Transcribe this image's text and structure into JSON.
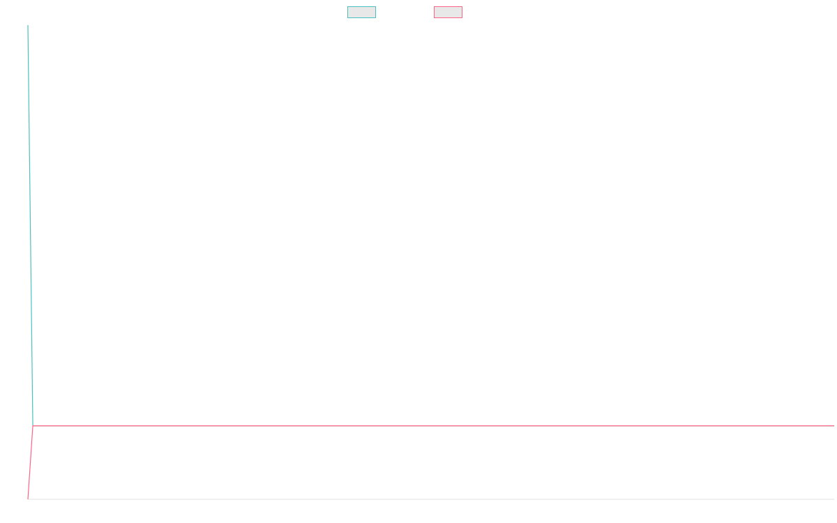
{
  "chart_data": {
    "type": "line",
    "title": "",
    "xlabel": "",
    "ylabel": "",
    "x": [
      0,
      1,
      2,
      3,
      4,
      5,
      6,
      7,
      8,
      9,
      10,
      11,
      12,
      13,
      14,
      15,
      16,
      17,
      18,
      19,
      20,
      21,
      22,
      23,
      24,
      25,
      26,
      27,
      28,
      29,
      30,
      31,
      32,
      33,
      34,
      35,
      36,
      37,
      38,
      39,
      40,
      41,
      42,
      43,
      44,
      45,
      46,
      47,
      48,
      49,
      50,
      51,
      52,
      53,
      54,
      55,
      56,
      57,
      58,
      59,
      60,
      61,
      62,
      63,
      64,
      65,
      66,
      67,
      68,
      69,
      70,
      71,
      72,
      73,
      74,
      75,
      76,
      77,
      78,
      79,
      80,
      81,
      82,
      83,
      84,
      85,
      86,
      87,
      88,
      89,
      90,
      91,
      92,
      93,
      94,
      95,
      96,
      97,
      98,
      99,
      100,
      101,
      102,
      103,
      104,
      105,
      106,
      107,
      108,
      109,
      110,
      111,
      112,
      113,
      114,
      115,
      116,
      117,
      118,
      119,
      120,
      121,
      122,
      123,
      124,
      125,
      126,
      127,
      128,
      129,
      130,
      131,
      132,
      133,
      134,
      135,
      136,
      137,
      138,
      139,
      140,
      141,
      142,
      143,
      144,
      145,
      146,
      147,
      148,
      149,
      150,
      151,
      152,
      153,
      154,
      155,
      156,
      157,
      158,
      159,
      160,
      161,
      162,
      163,
      164
    ],
    "xlim": [
      0,
      164
    ],
    "ylim": [
      0,
      100
    ],
    "legend_position": "top-center",
    "grid": false,
    "series": [
      {
        "name": "",
        "color": "#4bc0c0",
        "fill": "#e8e8e8",
        "values": [
          100,
          15.5,
          15.5,
          15.5,
          15.5,
          15.5,
          15.5,
          15.5,
          15.5,
          15.5,
          15.5,
          15.5,
          15.5,
          15.5,
          15.5,
          15.5,
          15.5,
          15.5,
          15.5,
          15.5,
          15.5,
          15.5,
          15.5,
          15.5,
          15.5,
          15.5,
          15.5,
          15.5,
          15.5,
          15.5,
          15.5,
          15.5,
          15.5,
          15.5,
          15.5,
          15.5,
          15.5,
          15.5,
          15.5,
          15.5,
          15.5,
          15.5,
          15.5,
          15.5,
          15.5,
          15.5,
          15.5,
          15.5,
          15.5,
          15.5,
          15.5,
          15.5,
          15.5,
          15.5,
          15.5,
          15.5,
          15.5,
          15.5,
          15.5,
          15.5,
          15.5,
          15.5,
          15.5,
          15.5,
          15.5,
          15.5,
          15.5,
          15.5,
          15.5,
          15.5,
          15.5,
          15.5,
          15.5,
          15.5,
          15.5,
          15.5,
          15.5,
          15.5,
          15.5,
          15.5,
          15.5,
          15.5,
          15.5,
          15.5,
          15.5,
          15.5,
          15.5,
          15.5,
          15.5,
          15.5,
          15.5,
          15.5,
          15.5,
          15.5,
          15.5,
          15.5,
          15.5,
          15.5,
          15.5,
          15.5,
          15.5,
          15.5,
          15.5,
          15.5,
          15.5,
          15.5,
          15.5,
          15.5,
          15.5,
          15.5,
          15.5,
          15.5,
          15.5,
          15.5,
          15.5,
          15.5,
          15.5,
          15.5,
          15.5,
          15.5,
          15.5,
          15.5,
          15.5,
          15.5,
          15.5,
          15.5,
          15.5,
          15.5,
          15.5,
          15.5,
          15.5,
          15.5,
          15.5,
          15.5,
          15.5,
          15.5,
          15.5,
          15.5,
          15.5,
          15.5,
          15.5,
          15.5,
          15.5,
          15.5,
          15.5,
          15.5,
          15.5,
          15.5,
          15.5,
          15.5,
          15.5,
          15.5,
          15.5,
          15.5,
          15.5,
          15.5,
          15.5,
          15.5,
          15.5,
          15.5,
          15.5,
          15.5,
          15.5,
          15.5,
          15.5
        ]
      },
      {
        "name": "",
        "color": "#ff6384",
        "fill": "#e8e8e8",
        "values": [
          0,
          15.5,
          15.5,
          15.5,
          15.5,
          15.5,
          15.5,
          15.5,
          15.5,
          15.5,
          15.5,
          15.5,
          15.5,
          15.5,
          15.5,
          15.5,
          15.5,
          15.5,
          15.5,
          15.5,
          15.5,
          15.5,
          15.5,
          15.5,
          15.5,
          15.5,
          15.5,
          15.5,
          15.5,
          15.5,
          15.5,
          15.5,
          15.5,
          15.5,
          15.5,
          15.5,
          15.5,
          15.5,
          15.5,
          15.5,
          15.5,
          15.5,
          15.5,
          15.5,
          15.5,
          15.5,
          15.5,
          15.5,
          15.5,
          15.5,
          15.5,
          15.5,
          15.5,
          15.5,
          15.5,
          15.5,
          15.5,
          15.5,
          15.5,
          15.5,
          15.5,
          15.5,
          15.5,
          15.5,
          15.5,
          15.5,
          15.5,
          15.5,
          15.5,
          15.5,
          15.5,
          15.5,
          15.5,
          15.5,
          15.5,
          15.5,
          15.5,
          15.5,
          15.5,
          15.5,
          15.5,
          15.5,
          15.5,
          15.5,
          15.5,
          15.5,
          15.5,
          15.5,
          15.5,
          15.5,
          15.5,
          15.5,
          15.5,
          15.5,
          15.5,
          15.5,
          15.5,
          15.5,
          15.5,
          15.5,
          15.5,
          15.5,
          15.5,
          15.5,
          15.5,
          15.5,
          15.5,
          15.5,
          15.5,
          15.5,
          15.5,
          15.5,
          15.5,
          15.5,
          15.5,
          15.5,
          15.5,
          15.5,
          15.5,
          15.5,
          15.5,
          15.5,
          15.5,
          15.5,
          15.5,
          15.5,
          15.5,
          15.5,
          15.5,
          15.5,
          15.5,
          15.5,
          15.5,
          15.5,
          15.5,
          15.5,
          15.5,
          15.5,
          15.5,
          15.5,
          15.5,
          15.5,
          15.5,
          15.5,
          15.5,
          15.5,
          15.5,
          15.5,
          15.5,
          15.5,
          15.5,
          15.5,
          15.5,
          15.5,
          15.5,
          15.5,
          15.5,
          15.5,
          15.5,
          15.5,
          15.5,
          15.5,
          15.5,
          15.5,
          15.5
        ]
      }
    ]
  }
}
